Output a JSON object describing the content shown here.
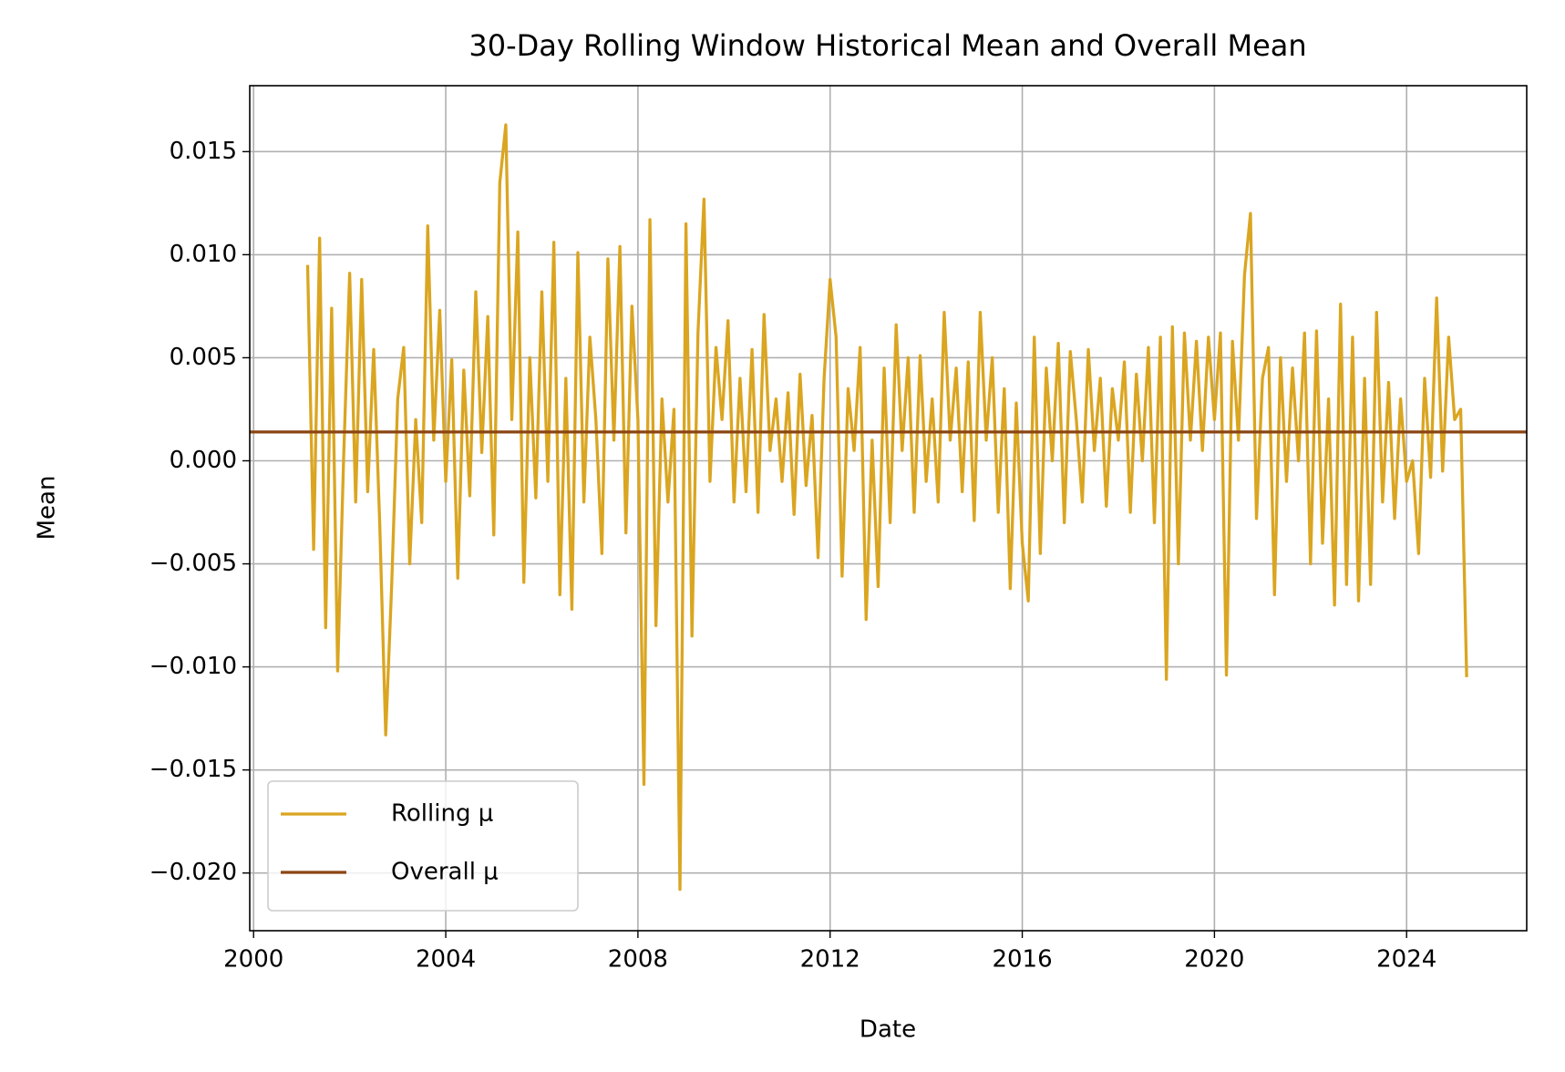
{
  "chart_data": {
    "type": "line",
    "title": "30-Day Rolling Window Historical Mean and Overall Mean",
    "xlabel": "Date",
    "ylabel": "Mean",
    "xlim": [
      1999.92,
      2026.5
    ],
    "xticks": [
      2000,
      2004,
      2008,
      2012,
      2016,
      2020,
      2024
    ],
    "ylim": [
      -0.0228,
      0.0182
    ],
    "yticks": [
      {
        "value": -0.02,
        "label": "−0.020"
      },
      {
        "value": -0.015,
        "label": "−0.015"
      },
      {
        "value": -0.01,
        "label": "−0.010"
      },
      {
        "value": -0.005,
        "label": "−0.005"
      },
      {
        "value": 0,
        "label": "0.000"
      },
      0.005,
      {
        "value": 0.01,
        "label": "0.010"
      },
      0.015
    ],
    "grid": true,
    "legend": "lower left",
    "x": [
      2001.125,
      2001.25,
      2001.375,
      2001.5,
      2001.625,
      2001.75,
      2001.875,
      2002.0,
      2002.125,
      2002.25,
      2002.375,
      2002.5,
      2002.625,
      2002.75,
      2002.875,
      2003.0,
      2003.125,
      2003.25,
      2003.375,
      2003.5,
      2003.625,
      2003.75,
      2003.875,
      2004.0,
      2004.125,
      2004.25,
      2004.375,
      2004.5,
      2004.625,
      2004.75,
      2004.875,
      2005.0,
      2005.125,
      2005.25,
      2005.375,
      2005.5,
      2005.625,
      2005.75,
      2005.875,
      2006.0,
      2006.125,
      2006.25,
      2006.375,
      2006.5,
      2006.625,
      2006.75,
      2006.875,
      2007.0,
      2007.125,
      2007.25,
      2007.375,
      2007.5,
      2007.625,
      2007.75,
      2007.875,
      2008.0,
      2008.125,
      2008.25,
      2008.375,
      2008.5,
      2008.625,
      2008.75,
      2008.875,
      2009.0,
      2009.125,
      2009.25,
      2009.375,
      2009.5,
      2009.625,
      2009.75,
      2009.875,
      2010.0,
      2010.125,
      2010.25,
      2010.375,
      2010.5,
      2010.625,
      2010.75,
      2010.875,
      2011.0,
      2011.125,
      2011.25,
      2011.375,
      2011.5,
      2011.625,
      2011.75,
      2011.875,
      2012.0,
      2012.125,
      2012.25,
      2012.375,
      2012.5,
      2012.625,
      2012.75,
      2012.875,
      2013.0,
      2013.125,
      2013.25,
      2013.375,
      2013.5,
      2013.625,
      2013.75,
      2013.875,
      2014.0,
      2014.125,
      2014.25,
      2014.375,
      2014.5,
      2014.625,
      2014.75,
      2014.875,
      2015.0,
      2015.125,
      2015.25,
      2015.375,
      2015.5,
      2015.625,
      2015.75,
      2015.875,
      2016.0,
      2016.125,
      2016.25,
      2016.375,
      2016.5,
      2016.625,
      2016.75,
      2016.875,
      2017.0,
      2017.125,
      2017.25,
      2017.375,
      2017.5,
      2017.625,
      2017.75,
      2017.875,
      2018.0,
      2018.125,
      2018.25,
      2018.375,
      2018.5,
      2018.625,
      2018.75,
      2018.875,
      2019.0,
      2019.125,
      2019.25,
      2019.375,
      2019.5,
      2019.625,
      2019.75,
      2019.875,
      2020.0,
      2020.125,
      2020.25,
      2020.375,
      2020.5,
      2020.625,
      2020.75,
      2020.875,
      2021.0,
      2021.125,
      2021.25,
      2021.375,
      2021.5,
      2021.625,
      2021.75,
      2021.875,
      2022.0,
      2022.125,
      2022.25,
      2022.375,
      2022.5,
      2022.625,
      2022.75,
      2022.875,
      2023.0,
      2023.125,
      2023.25,
      2023.375,
      2023.5,
      2023.625,
      2023.75,
      2023.875,
      2024.0,
      2024.125,
      2024.25,
      2024.375,
      2024.5,
      2024.625,
      2024.75,
      2024.875,
      2025.0,
      2025.125,
      2025.25
    ],
    "series": [
      {
        "name": "Rolling μ",
        "color": "#daa520",
        "values": [
          0.0095,
          -0.0043,
          0.0108,
          -0.0081,
          0.0074,
          -0.0102,
          0.0002,
          0.0091,
          -0.002,
          0.0088,
          -0.0015,
          0.0054,
          -0.003,
          -0.0133,
          -0.006,
          0.003,
          0.0055,
          -0.005,
          0.002,
          -0.003,
          0.0114,
          0.001,
          0.0073,
          -0.001,
          0.0049,
          -0.0057,
          0.0044,
          -0.0017,
          0.0082,
          0.0004,
          0.007,
          -0.0036,
          0.0135,
          0.0163,
          0.002,
          0.0111,
          -0.0059,
          0.005,
          -0.0018,
          0.0082,
          -0.001,
          0.0106,
          -0.0065,
          0.004,
          -0.0072,
          0.0101,
          -0.002,
          0.006,
          0.002,
          -0.0045,
          0.0098,
          0.001,
          0.0104,
          -0.0035,
          0.0075,
          0.002,
          -0.0157,
          0.0117,
          -0.008,
          0.003,
          -0.002,
          0.0025,
          -0.0208,
          0.0115,
          -0.0085,
          0.0062,
          0.0127,
          -0.001,
          0.0055,
          0.002,
          0.0068,
          -0.002,
          0.004,
          -0.0015,
          0.0054,
          -0.0025,
          0.0071,
          0.0005,
          0.003,
          -0.001,
          0.0033,
          -0.0026,
          0.0042,
          -0.0012,
          0.0022,
          -0.0047,
          0.004,
          0.0088,
          0.006,
          -0.0056,
          0.0035,
          0.0005,
          0.0055,
          -0.0077,
          0.001,
          -0.0061,
          0.0045,
          -0.003,
          0.0066,
          0.0005,
          0.005,
          -0.0025,
          0.0051,
          -0.001,
          0.003,
          -0.002,
          0.0072,
          0.001,
          0.0045,
          -0.0015,
          0.0048,
          -0.0029,
          0.0072,
          0.001,
          0.005,
          -0.0025,
          0.0035,
          -0.0062,
          0.0028,
          -0.004,
          -0.0068,
          0.006,
          -0.0045,
          0.0045,
          0.0,
          0.0057,
          -0.003,
          0.0053,
          0.002,
          -0.002,
          0.0054,
          0.0005,
          0.004,
          -0.0022,
          0.0035,
          0.001,
          0.0048,
          -0.0025,
          0.0042,
          0.0,
          0.0055,
          -0.003,
          0.006,
          -0.0106,
          0.0065,
          -0.005,
          0.0062,
          0.001,
          0.0058,
          0.0005,
          0.006,
          0.002,
          0.0062,
          -0.0104,
          0.0058,
          0.001,
          0.009,
          0.012,
          -0.0028,
          0.004,
          0.0055,
          -0.0065,
          0.005,
          -0.001,
          0.0045,
          0.0,
          0.0062,
          -0.005,
          0.0063,
          -0.004,
          0.003,
          -0.007,
          0.0076,
          -0.006,
          0.006,
          -0.0068,
          0.004,
          -0.006,
          0.0072,
          -0.002,
          0.0038,
          -0.0028,
          0.003,
          -0.001,
          0.0,
          -0.0045,
          0.004,
          -0.0008,
          0.0079,
          -0.0005,
          0.006,
          0.002,
          0.0025,
          -0.0105
        ]
      }
    ],
    "overall_mean": {
      "name": "Overall μ",
      "color": "#8b4513",
      "value": 0.0014
    }
  }
}
